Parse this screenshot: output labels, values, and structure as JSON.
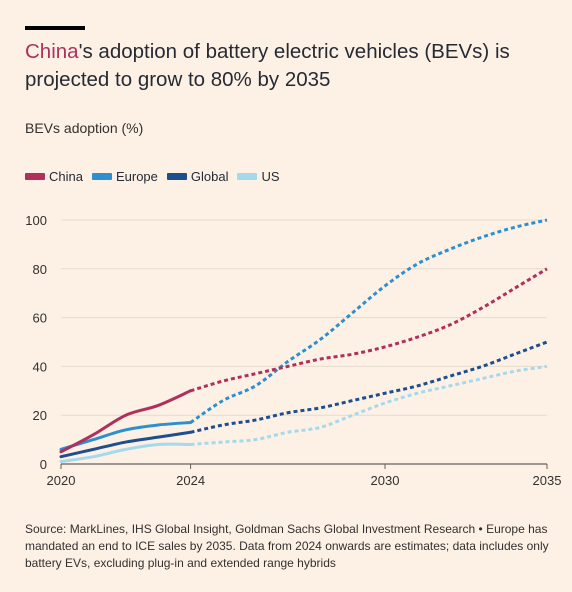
{
  "title": {
    "highlight": "China",
    "rest": "'s adoption of battery electric vehicles (BEVs) is projected to grow to 80% by 2035"
  },
  "subtitle": "BEVs adoption (%)",
  "legend": [
    {
      "label": "China",
      "color": "#b0305c"
    },
    {
      "label": "Europe",
      "color": "#2e8fcf"
    },
    {
      "label": "Global",
      "color": "#1e4e8c"
    },
    {
      "label": "US",
      "color": "#a6d9eb"
    }
  ],
  "source": "Source: MarkLines, IHS Global Insight, Goldman Sachs Global Investment Research • Europe has mandated an end to ICE sales by 2035. Data from 2024 onwards are estimates; data includes only battery EVs, excluding plug-in and extended range hybrids",
  "chart_data": {
    "type": "line",
    "title": "China's adoption of battery electric vehicles (BEVs) is projected to grow to 80% by 2035",
    "ylabel": "BEVs adoption (%)",
    "xlim": [
      2020,
      2035
    ],
    "ylim": [
      0,
      100
    ],
    "x_ticks": [
      "2020",
      "2024",
      "2030",
      "2035"
    ],
    "y_ticks": [
      "0",
      "20",
      "40",
      "60",
      "80",
      "100"
    ],
    "estimate_from": 2024,
    "grid": true,
    "legend_position": "top-left",
    "series": [
      {
        "name": "China",
        "color": "#b0305c",
        "points": [
          [
            2020,
            5
          ],
          [
            2021,
            12
          ],
          [
            2022,
            20
          ],
          [
            2023,
            24
          ],
          [
            2024,
            30
          ],
          [
            2025,
            34
          ],
          [
            2026,
            37
          ],
          [
            2027,
            40
          ],
          [
            2028,
            43
          ],
          [
            2029,
            45
          ],
          [
            2030,
            48
          ],
          [
            2031,
            52
          ],
          [
            2032,
            57
          ],
          [
            2033,
            64
          ],
          [
            2034,
            72
          ],
          [
            2035,
            80
          ]
        ]
      },
      {
        "name": "Europe",
        "color": "#2e8fcf",
        "points": [
          [
            2020,
            6
          ],
          [
            2021,
            10
          ],
          [
            2022,
            14
          ],
          [
            2023,
            16
          ],
          [
            2024,
            17
          ],
          [
            2025,
            26
          ],
          [
            2026,
            32
          ],
          [
            2027,
            42
          ],
          [
            2028,
            51
          ],
          [
            2029,
            62
          ],
          [
            2030,
            73
          ],
          [
            2031,
            82
          ],
          [
            2032,
            88
          ],
          [
            2033,
            93
          ],
          [
            2034,
            97
          ],
          [
            2035,
            100
          ]
        ]
      },
      {
        "name": "Global",
        "color": "#1e4e8c",
        "points": [
          [
            2020,
            3
          ],
          [
            2021,
            6
          ],
          [
            2022,
            9
          ],
          [
            2023,
            11
          ],
          [
            2024,
            13
          ],
          [
            2025,
            16
          ],
          [
            2026,
            18
          ],
          [
            2027,
            21
          ],
          [
            2028,
            23
          ],
          [
            2029,
            26
          ],
          [
            2030,
            29
          ],
          [
            2031,
            32
          ],
          [
            2032,
            36
          ],
          [
            2033,
            40
          ],
          [
            2034,
            45
          ],
          [
            2035,
            50
          ]
        ]
      },
      {
        "name": "US",
        "color": "#a6d9eb",
        "points": [
          [
            2020,
            1
          ],
          [
            2021,
            3
          ],
          [
            2022,
            6
          ],
          [
            2023,
            8
          ],
          [
            2024,
            8
          ],
          [
            2025,
            9
          ],
          [
            2026,
            10
          ],
          [
            2027,
            13
          ],
          [
            2028,
            15
          ],
          [
            2029,
            20
          ],
          [
            2030,
            25
          ],
          [
            2031,
            29
          ],
          [
            2032,
            32
          ],
          [
            2033,
            35
          ],
          [
            2034,
            38
          ],
          [
            2035,
            40
          ]
        ]
      }
    ]
  }
}
